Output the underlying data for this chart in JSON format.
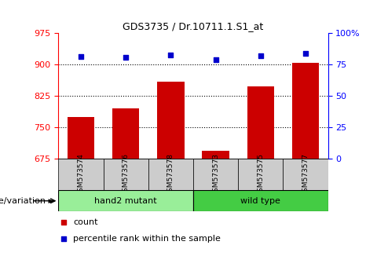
{
  "title": "GDS3735 / Dr.10711.1.S1_at",
  "categories": [
    "GSM573574",
    "GSM573576",
    "GSM573578",
    "GSM573573",
    "GSM573575",
    "GSM573577"
  ],
  "bar_values": [
    775,
    795,
    860,
    693,
    848,
    905
  ],
  "bar_bottom": 675,
  "percentile_values_left_axis": [
    920,
    918,
    924,
    912,
    922,
    926
  ],
  "ylim_left": [
    675,
    975
  ],
  "ylim_right": [
    0,
    100
  ],
  "yticks_left": [
    675,
    750,
    825,
    900,
    975
  ],
  "yticks_right": [
    0,
    25,
    50,
    75,
    100
  ],
  "bar_color": "#cc0000",
  "dot_color": "#0000cc",
  "bar_width": 0.6,
  "groups": [
    {
      "label": "hand2 mutant",
      "indices": [
        0,
        1,
        2
      ],
      "color": "#99ee99"
    },
    {
      "label": "wild type",
      "indices": [
        3,
        4,
        5
      ],
      "color": "#44cc44"
    }
  ],
  "group_label": "genotype/variation",
  "legend_items": [
    {
      "label": "count",
      "color": "#cc0000"
    },
    {
      "label": "percentile rank within the sample",
      "color": "#0000cc"
    }
  ],
  "bg_color": "#ffffff",
  "tick_label_bg": "#cccccc",
  "title_fontsize": 9,
  "tick_fontsize": 8,
  "label_fontsize": 8
}
